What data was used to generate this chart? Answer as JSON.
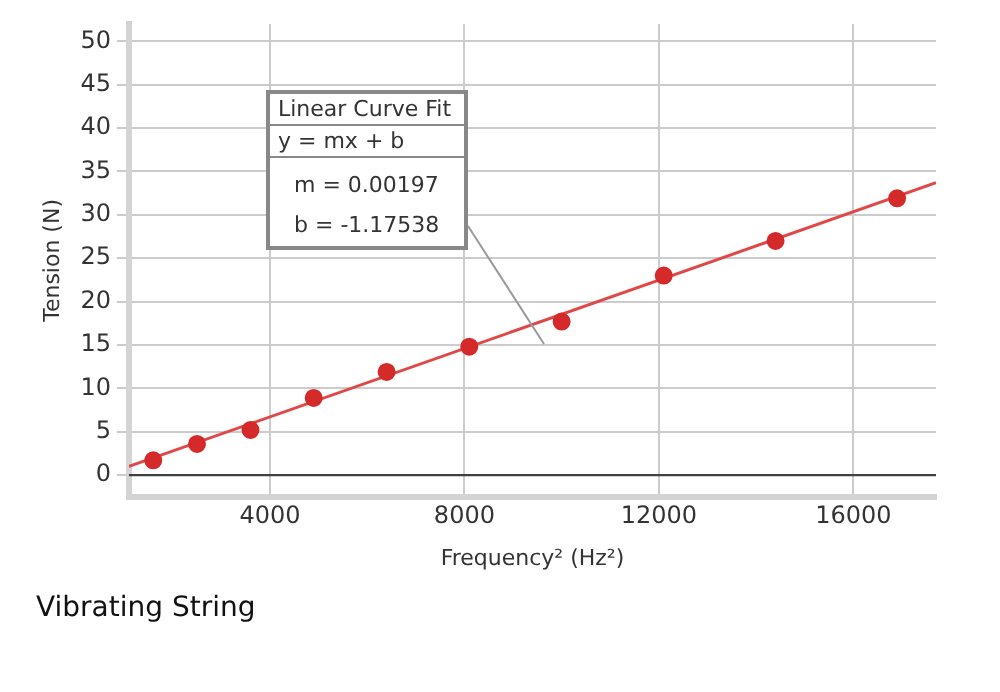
{
  "chart_data": {
    "type": "scatter",
    "title": "Vibrating String",
    "xlabel": "Frequency² (Hz²)",
    "ylabel": "Tension (N)",
    "xlim": [
      1100,
      17700
    ],
    "xticks": [
      4000,
      8000,
      12000,
      16000
    ],
    "ylim": [
      -2.5,
      52
    ],
    "yticks": [
      0,
      5,
      10,
      15,
      20,
      25,
      30,
      35,
      40,
      45,
      50
    ],
    "grid": true,
    "legend": false,
    "marker": "circle",
    "series": [
      {
        "color": "#d42a2a",
        "x": [
          1600,
          2500,
          3600,
          4900,
          6400,
          8100,
          10000,
          12100,
          14400,
          16900
        ],
        "values": [
          1.7,
          3.6,
          5.2,
          8.9,
          11.9,
          14.8,
          17.7,
          23.0,
          27.0,
          31.9
        ]
      },
      {
        "type": "line",
        "color": "#e04848",
        "marker": "none",
        "x": [
          1100,
          17700
        ],
        "values": [
          1.0,
          33.7
        ]
      }
    ],
    "ref_lines": [
      {
        "axis": "y",
        "value": 0,
        "color": "#404040"
      }
    ],
    "annotations": [
      "Linear Curve Fit",
      "y = mx + b",
      "m = 0.00197",
      "b = -1.17538"
    ]
  }
}
